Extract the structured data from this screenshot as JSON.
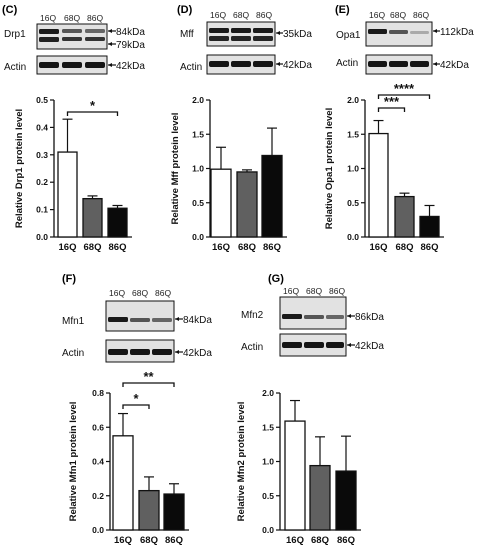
{
  "colors": {
    "bar_16Q": "#ffffff",
    "bar_68Q": "#606060",
    "bar_86Q": "#0a0a0a",
    "axis": "#111111",
    "band_dark": "#1a1a1a",
    "blot_bg": "#d8d8d8"
  },
  "panels": {
    "C": {
      "label": "(C)",
      "lanes": [
        "16Q",
        "68Q",
        "86Q"
      ],
      "protein": "Drp1",
      "protein_kda": [
        "84kDa",
        "79kDa"
      ],
      "loading": "Actin",
      "loading_kda": "42kDa"
    },
    "D": {
      "label": "(D)",
      "lanes": [
        "16Q",
        "68Q",
        "86Q"
      ],
      "protein": "Mff",
      "protein_kda": [
        "35kDa"
      ],
      "loading": "Actin",
      "loading_kda": "42kDa"
    },
    "E": {
      "label": "(E)",
      "lanes": [
        "16Q",
        "68Q",
        "86Q"
      ],
      "protein": "Opa1",
      "protein_kda": [
        "112kDa"
      ],
      "loading": "Actin",
      "loading_kda": "42kDa"
    },
    "F": {
      "label": "(F)",
      "lanes": [
        "16Q",
        "68Q",
        "86Q"
      ],
      "protein": "Mfn1",
      "protein_kda": [
        "84kDa"
      ],
      "loading": "Actin",
      "loading_kda": "42kDa"
    },
    "G": {
      "label": "(G)",
      "lanes": [
        "16Q",
        "68Q",
        "86Q"
      ],
      "protein": "Mfn2",
      "protein_kda": [
        "86kDa"
      ],
      "loading": "Actin",
      "loading_kda": "42kDa"
    }
  },
  "chart_data": [
    {
      "panel": "C",
      "type": "bar",
      "categories": [
        "16Q",
        "68Q",
        "86Q"
      ],
      "values": [
        0.31,
        0.14,
        0.105
      ],
      "errors": [
        0.12,
        0.01,
        0.01
      ],
      "ylabel": "Relative Drp1 protein level",
      "ylim": [
        0,
        0.5
      ],
      "yticks": [
        "0.0",
        "0.1",
        "0.2",
        "0.3",
        "0.4",
        "0.5"
      ],
      "significance": [
        {
          "from": 0,
          "to": 2,
          "label": "*"
        }
      ]
    },
    {
      "panel": "D",
      "type": "bar",
      "categories": [
        "16Q",
        "68Q",
        "86Q"
      ],
      "values": [
        0.99,
        0.95,
        1.19
      ],
      "errors": [
        0.32,
        0.03,
        0.4
      ],
      "ylabel": "Relative Mff protein level",
      "ylim": [
        0,
        2.0
      ],
      "yticks": [
        "0.0",
        "0.5",
        "1.0",
        "1.5",
        "2.0"
      ],
      "significance": []
    },
    {
      "panel": "E",
      "type": "bar",
      "categories": [
        "16Q",
        "68Q",
        "86Q"
      ],
      "values": [
        1.51,
        0.59,
        0.3
      ],
      "errors": [
        0.19,
        0.05,
        0.16
      ],
      "ylabel": "Relative Opa1 protein level",
      "ylim": [
        0,
        2.0
      ],
      "yticks": [
        "0.0",
        "0.5",
        "1.0",
        "1.5",
        "2.0"
      ],
      "significance": [
        {
          "from": 0,
          "to": 1,
          "label": "***"
        },
        {
          "from": 0,
          "to": 2,
          "label": "****"
        }
      ]
    },
    {
      "panel": "F",
      "type": "bar",
      "categories": [
        "16Q",
        "68Q",
        "86Q"
      ],
      "values": [
        0.55,
        0.23,
        0.21
      ],
      "errors": [
        0.13,
        0.08,
        0.06
      ],
      "ylabel": "Relative Mfn1 protein level",
      "ylim": [
        0,
        0.8
      ],
      "yticks": [
        "0.0",
        "0.2",
        "0.4",
        "0.6",
        "0.8"
      ],
      "significance": [
        {
          "from": 0,
          "to": 1,
          "label": "*"
        },
        {
          "from": 0,
          "to": 2,
          "label": "**"
        }
      ]
    },
    {
      "panel": "G",
      "type": "bar",
      "categories": [
        "16Q",
        "68Q",
        "86Q"
      ],
      "values": [
        1.59,
        0.94,
        0.86
      ],
      "errors": [
        0.3,
        0.42,
        0.51
      ],
      "ylabel": "Relative Mfn2 protein level",
      "ylim": [
        0,
        2.0
      ],
      "yticks": [
        "0.0",
        "0.5",
        "1.0",
        "1.5",
        "2.0"
      ],
      "significance": []
    }
  ]
}
